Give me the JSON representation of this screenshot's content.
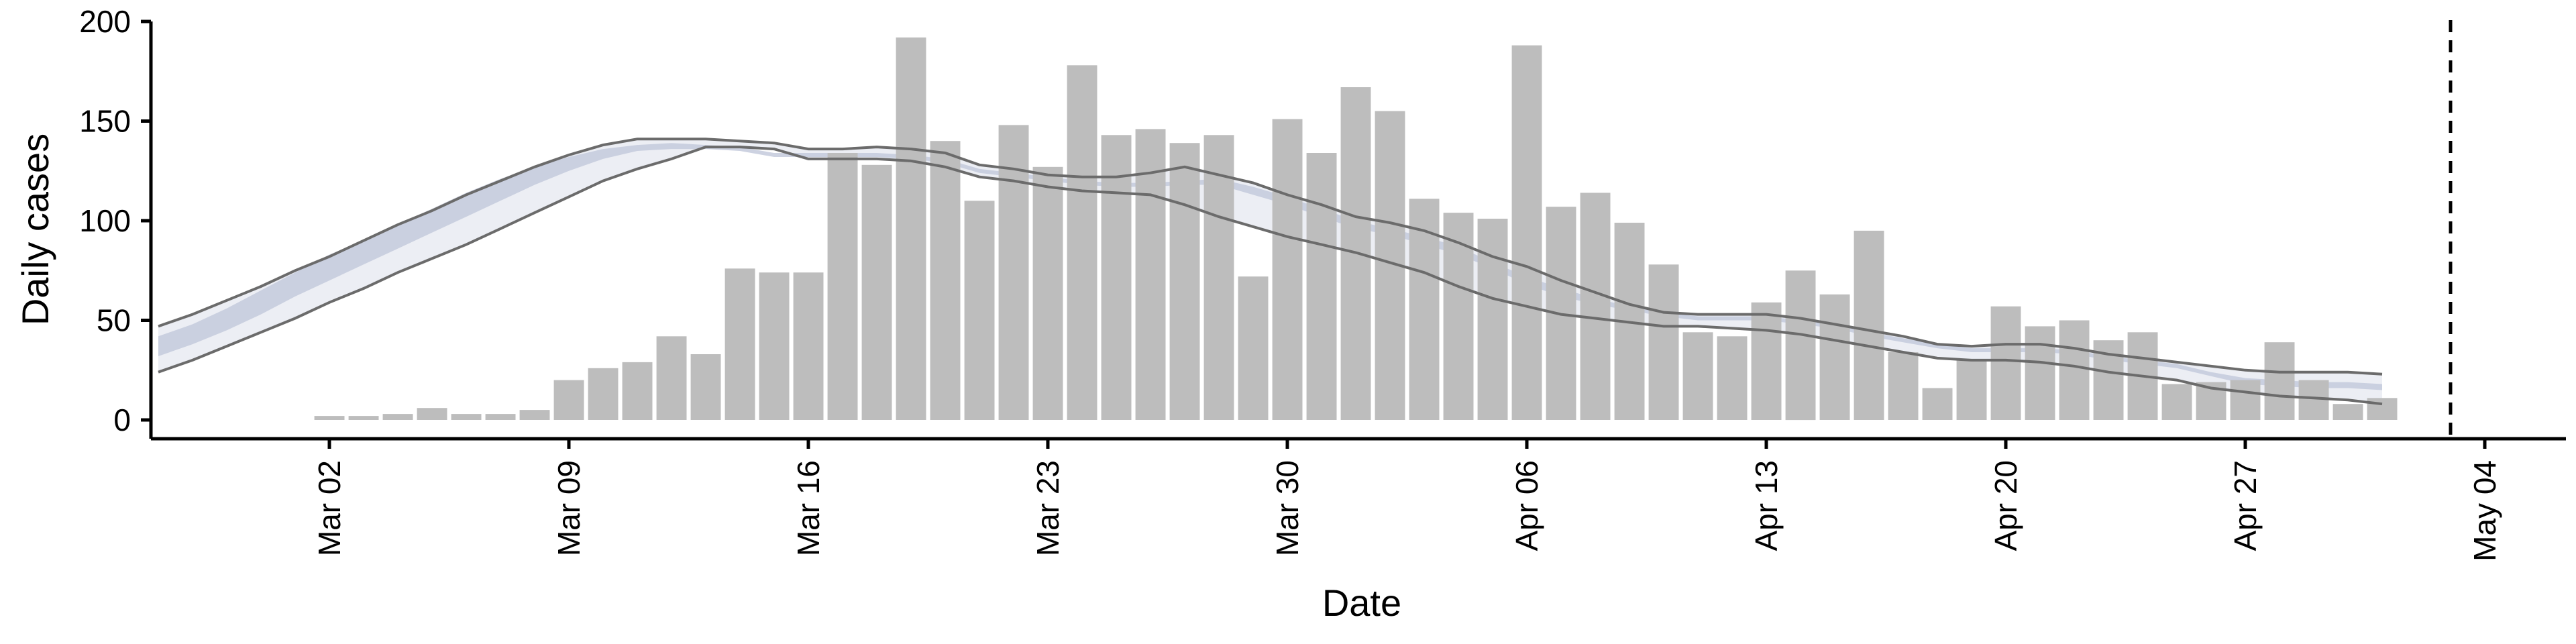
{
  "chart_data": {
    "type": "bar",
    "title": "",
    "xlabel": "Date",
    "ylabel": "Daily cases",
    "ylim": [
      0,
      200
    ],
    "yticks": [
      0,
      50,
      100,
      150,
      200
    ],
    "x_start": "2020-02-27",
    "x_end": "2020-05-09",
    "xticks": [
      {
        "date": "2020-03-02",
        "label": "Mar 02"
      },
      {
        "date": "2020-03-09",
        "label": "Mar 09"
      },
      {
        "date": "2020-03-16",
        "label": "Mar 16"
      },
      {
        "date": "2020-03-23",
        "label": "Mar 23"
      },
      {
        "date": "2020-03-30",
        "label": "Mar 30"
      },
      {
        "date": "2020-04-06",
        "label": "Apr 06"
      },
      {
        "date": "2020-04-13",
        "label": "Apr 13"
      },
      {
        "date": "2020-04-20",
        "label": "Apr 20"
      },
      {
        "date": "2020-04-27",
        "label": "Apr 27"
      },
      {
        "date": "2020-05-04",
        "label": "May 04"
      }
    ],
    "bars": {
      "start_date": "2020-03-02",
      "values": [
        2,
        2,
        3,
        6,
        3,
        3,
        5,
        20,
        26,
        29,
        42,
        33,
        76,
        74,
        74,
        134,
        128,
        192,
        140,
        110,
        148,
        127,
        178,
        143,
        146,
        139,
        143,
        72,
        151,
        134,
        167,
        155,
        111,
        104,
        101,
        188,
        107,
        114,
        99,
        78,
        44,
        42,
        59,
        75,
        63,
        95,
        34,
        16,
        30,
        57,
        47,
        50,
        40,
        44,
        18,
        19,
        20,
        39,
        20,
        8,
        11
      ]
    },
    "vertical_line": {
      "date": "2020-05-03",
      "style": "dashed"
    },
    "series": [
      {
        "type": "band",
        "color": "#c4cadc",
        "start_date": "2020-02-26",
        "values": [
          [
            32,
            42
          ],
          [
            38,
            48
          ],
          [
            45,
            56
          ],
          [
            53,
            65
          ],
          [
            62,
            74
          ],
          [
            70,
            83
          ],
          [
            78,
            90
          ],
          [
            86,
            98
          ],
          [
            94,
            106
          ],
          [
            102,
            114
          ],
          [
            110,
            121
          ],
          [
            118,
            127
          ],
          [
            125,
            132
          ],
          [
            131,
            136
          ],
          [
            135,
            138
          ],
          [
            136,
            139
          ],
          [
            136,
            138
          ],
          [
            135,
            137
          ],
          [
            132,
            134
          ],
          [
            132,
            134
          ],
          [
            132,
            134
          ],
          [
            132,
            134
          ],
          [
            131,
            133
          ],
          [
            129,
            131
          ],
          [
            124,
            126
          ],
          [
            122,
            124
          ],
          [
            120,
            122
          ],
          [
            118,
            120
          ],
          [
            117,
            119
          ],
          [
            117,
            119
          ],
          [
            118,
            120
          ],
          [
            118,
            121
          ],
          [
            113,
            117
          ],
          [
            108,
            112
          ],
          [
            102,
            106
          ],
          [
            96,
            100
          ],
          [
            93,
            96
          ],
          [
            88,
            92
          ],
          [
            83,
            87
          ],
          [
            76,
            79
          ],
          [
            68,
            72
          ],
          [
            62,
            66
          ],
          [
            58,
            61
          ],
          [
            55,
            57
          ],
          [
            52,
            54
          ],
          [
            50,
            52
          ],
          [
            50,
            52
          ],
          [
            50,
            52
          ],
          [
            48,
            50
          ],
          [
            46,
            48
          ],
          [
            42,
            44
          ],
          [
            39,
            41
          ],
          [
            36,
            38
          ],
          [
            34,
            36
          ],
          [
            34,
            36
          ],
          [
            34,
            36
          ],
          [
            33,
            35
          ],
          [
            30,
            32
          ],
          [
            28,
            30
          ],
          [
            26,
            28
          ],
          [
            22,
            24
          ],
          [
            18,
            21
          ],
          [
            17,
            20
          ],
          [
            16,
            19
          ],
          [
            16,
            19
          ],
          [
            15,
            18
          ]
        ]
      },
      {
        "type": "band",
        "color": "#e8eaf2",
        "start_date": "2020-02-26",
        "values": [
          [
            24,
            47
          ],
          [
            30,
            53
          ],
          [
            37,
            60
          ],
          [
            44,
            67
          ],
          [
            51,
            75
          ],
          [
            59,
            82
          ],
          [
            66,
            90
          ],
          [
            74,
            98
          ],
          [
            81,
            105
          ],
          [
            88,
            113
          ],
          [
            96,
            120
          ],
          [
            104,
            127
          ],
          [
            112,
            133
          ],
          [
            120,
            138
          ],
          [
            126,
            141
          ],
          [
            131,
            141
          ],
          [
            137,
            141
          ],
          [
            137,
            140
          ],
          [
            136,
            139
          ],
          [
            131,
            136
          ],
          [
            131,
            136
          ],
          [
            131,
            137
          ],
          [
            130,
            136
          ],
          [
            127,
            134
          ],
          [
            122,
            128
          ],
          [
            120,
            126
          ],
          [
            117,
            123
          ],
          [
            115,
            122
          ],
          [
            114,
            122
          ],
          [
            113,
            124
          ],
          [
            108,
            127
          ],
          [
            102,
            123
          ],
          [
            97,
            119
          ],
          [
            92,
            113
          ],
          [
            88,
            108
          ],
          [
            84,
            102
          ],
          [
            79,
            99
          ],
          [
            74,
            95
          ],
          [
            67,
            89
          ],
          [
            61,
            82
          ],
          [
            57,
            77
          ],
          [
            53,
            70
          ],
          [
            51,
            64
          ],
          [
            49,
            58
          ],
          [
            47,
            54
          ],
          [
            47,
            53
          ],
          [
            46,
            53
          ],
          [
            45,
            53
          ],
          [
            43,
            51
          ],
          [
            40,
            48
          ],
          [
            37,
            45
          ],
          [
            34,
            42
          ],
          [
            31,
            38
          ],
          [
            30,
            37
          ],
          [
            30,
            38
          ],
          [
            29,
            38
          ],
          [
            27,
            36
          ],
          [
            24,
            33
          ],
          [
            22,
            31
          ],
          [
            20,
            29
          ],
          [
            16,
            27
          ],
          [
            14,
            25
          ],
          [
            12,
            24
          ],
          [
            11,
            24
          ],
          [
            10,
            24
          ],
          [
            8,
            23
          ]
        ]
      }
    ],
    "grid": false,
    "legend": "none"
  }
}
